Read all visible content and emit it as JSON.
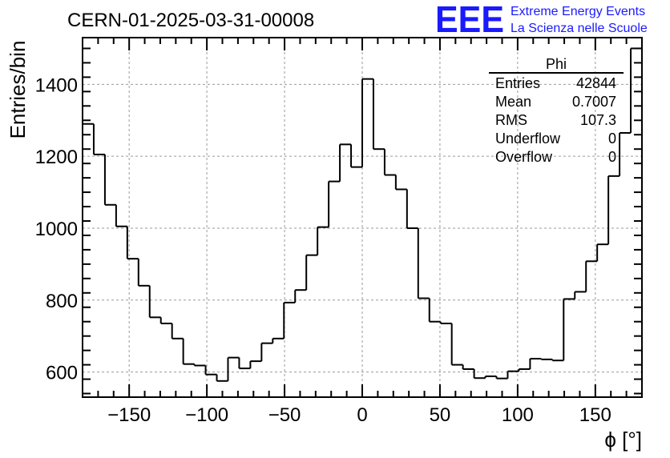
{
  "chart_data": {
    "type": "histogram",
    "title": "CERN-01-2025-03-31-00008",
    "xlabel": "ϕ [°]",
    "ylabel": "Entries/bin",
    "xlim": [
      -180,
      180
    ],
    "ylim": [
      530,
      1530
    ],
    "grid": true,
    "bin_width": 7.2,
    "bin_edges_start": -180,
    "values": [
      1290,
      1205,
      1065,
      1005,
      915,
      840,
      752,
      735,
      693,
      622,
      618,
      593,
      575,
      640,
      610,
      630,
      680,
      693,
      793,
      828,
      925,
      1003,
      1130,
      1233,
      1170,
      1415,
      1220,
      1148,
      1108,
      1000,
      805,
      740,
      735,
      620,
      608,
      583,
      588,
      582,
      602,
      608,
      637,
      635,
      632,
      803,
      823,
      908,
      955,
      1145,
      1265,
      1500
    ],
    "x_ticks": [
      {
        "value": -150,
        "label": "−150"
      },
      {
        "value": -100,
        "label": "−100"
      },
      {
        "value": -50,
        "label": "−50"
      },
      {
        "value": 0,
        "label": "0"
      },
      {
        "value": 50,
        "label": "50"
      },
      {
        "value": 100,
        "label": "100"
      },
      {
        "value": 150,
        "label": "150"
      }
    ],
    "y_ticks": [
      {
        "value": 600,
        "label": "600"
      },
      {
        "value": 800,
        "label": "800"
      },
      {
        "value": 1000,
        "label": "1000"
      },
      {
        "value": 1200,
        "label": "1200"
      },
      {
        "value": 1400,
        "label": "1400"
      }
    ],
    "stats_box": {
      "title": "Phi",
      "rows": [
        {
          "label": "Entries",
          "value": "42844"
        },
        {
          "label": "Mean",
          "value": "0.7007"
        },
        {
          "label": "RMS",
          "value": "107.3"
        },
        {
          "label": "Underflow",
          "value": "0"
        },
        {
          "label": "Overflow",
          "value": "0"
        }
      ]
    }
  },
  "logo": {
    "mark": "EEE",
    "line1": "Extreme Energy Events",
    "line2": "La Scienza nelle Scuole",
    "color": "#1a1aff"
  },
  "colors": {
    "line": "#000000",
    "grid": "#9a9a9a"
  }
}
